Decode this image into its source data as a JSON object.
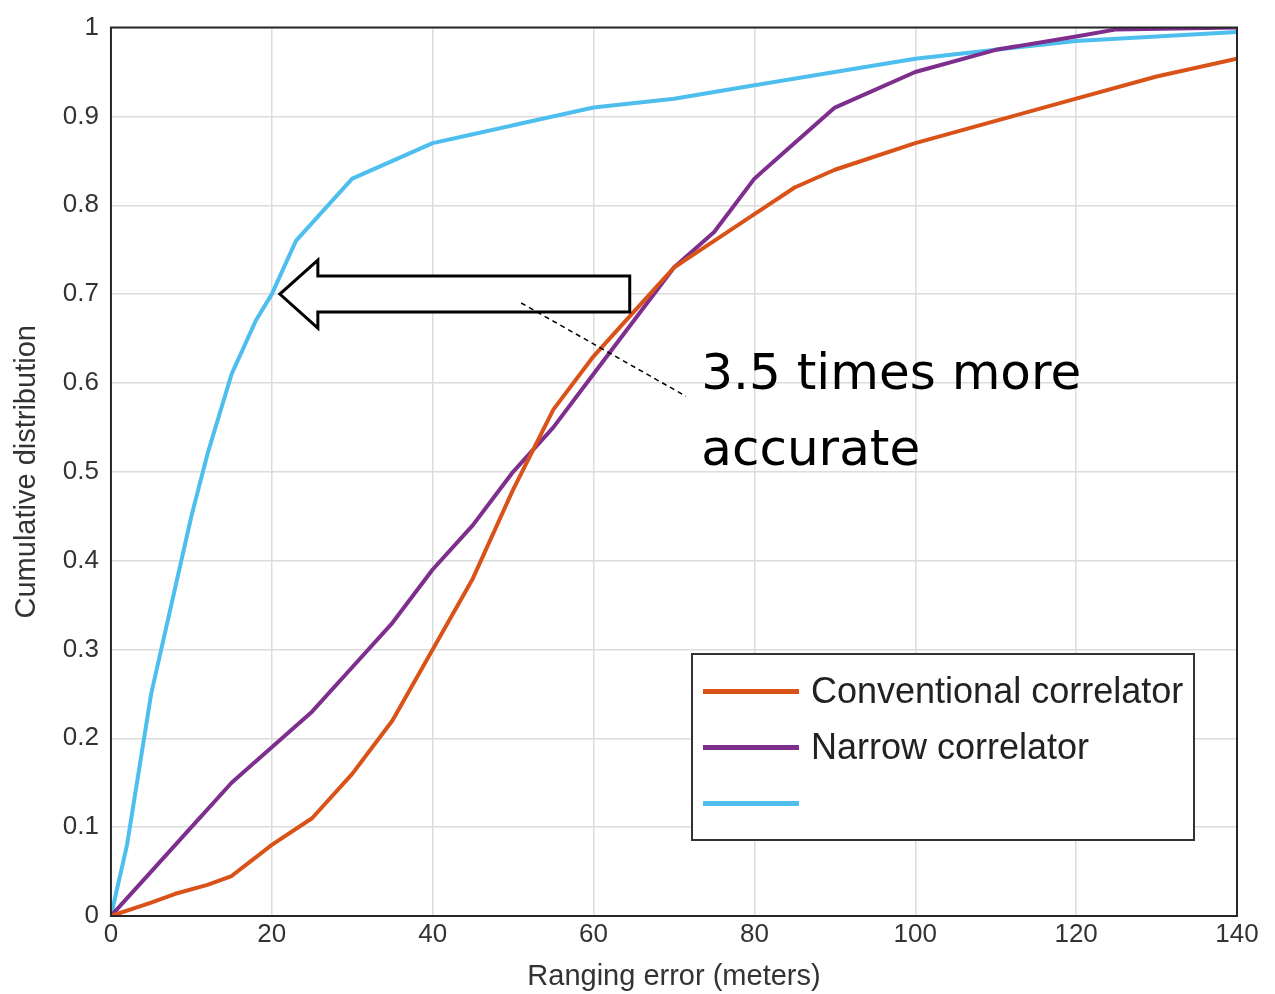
{
  "chart_data": {
    "type": "line",
    "xlabel": "Ranging error (meters)",
    "ylabel": "Cumulative distribution",
    "xlim": [
      0,
      140
    ],
    "xticks": [
      0,
      20,
      40,
      60,
      80,
      100,
      120,
      140
    ],
    "ylim": [
      0,
      1
    ],
    "yticks": [
      0,
      0.1,
      0.2,
      0.3,
      0.4,
      0.5,
      0.6,
      0.7,
      0.8,
      0.9,
      1
    ],
    "grid": true,
    "legend": "bottom right",
    "marker": "none",
    "line_style": "solid",
    "annotations": [
      "3.5 times more accurate"
    ],
    "series": [
      {
        "name": "Conventional correlator",
        "color": "#d95319",
        "x": [
          0,
          5,
          8,
          12,
          15,
          20,
          25,
          30,
          35,
          40,
          45,
          50,
          55,
          60,
          65,
          70,
          75,
          80,
          85,
          90,
          100,
          110,
          120,
          130,
          140
        ],
        "values": [
          0,
          0.015,
          0.025,
          0.035,
          0.045,
          0.08,
          0.11,
          0.16,
          0.22,
          0.3,
          0.38,
          0.48,
          0.57,
          0.63,
          0.68,
          0.73,
          0.76,
          0.79,
          0.82,
          0.84,
          0.87,
          0.895,
          0.92,
          0.945,
          0.965
        ]
      },
      {
        "name": "Narrow correlator",
        "color": "#7e2f8e",
        "x": [
          0,
          5,
          10,
          15,
          20,
          25,
          30,
          35,
          40,
          45,
          50,
          55,
          60,
          65,
          70,
          75,
          80,
          85,
          90,
          100,
          110,
          120,
          125,
          140
        ],
        "values": [
          0,
          0.05,
          0.1,
          0.15,
          0.19,
          0.23,
          0.28,
          0.33,
          0.39,
          0.44,
          0.5,
          0.55,
          0.61,
          0.67,
          0.73,
          0.77,
          0.83,
          0.87,
          0.91,
          0.95,
          0.975,
          0.99,
          0.998,
          1
        ]
      },
      {
        "color": "#4dbeee",
        "x": [
          0,
          2,
          5,
          8,
          10,
          12,
          15,
          18,
          20,
          23,
          26,
          30,
          35,
          40,
          45,
          50,
          60,
          70,
          80,
          90,
          100,
          110,
          120,
          130,
          140
        ],
        "values": [
          0,
          0.08,
          0.25,
          0.37,
          0.45,
          0.52,
          0.61,
          0.67,
          0.7,
          0.76,
          0.79,
          0.83,
          0.85,
          0.87,
          0.88,
          0.89,
          0.91,
          0.92,
          0.935,
          0.95,
          0.965,
          0.975,
          0.985,
          0.99,
          0.995
        ]
      }
    ]
  }
}
